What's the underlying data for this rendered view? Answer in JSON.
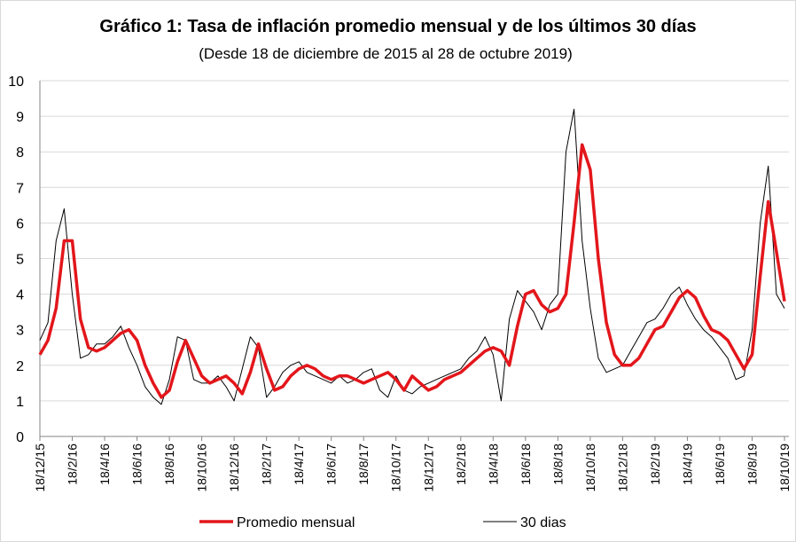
{
  "chart_data": {
    "type": "line",
    "title": "Gráfico 1: Tasa de inflación promedio mensual y de los últimos 30 días",
    "subtitle": "(Desde 18 de diciembre de 2015 al 28 de octubre 2019)",
    "categories": [
      "18/12/15",
      null,
      null,
      null,
      "18/2/16",
      null,
      null,
      null,
      "18/4/16",
      null,
      null,
      null,
      "18/6/16",
      null,
      null,
      null,
      "18/8/16",
      null,
      null,
      null,
      "18/10/16",
      null,
      null,
      null,
      "18/12/16",
      null,
      null,
      null,
      "18/2/17",
      null,
      null,
      null,
      "18/4/17",
      null,
      null,
      null,
      "18/6/17",
      null,
      null,
      null,
      "18/8/17",
      null,
      null,
      null,
      "18/10/17",
      null,
      null,
      null,
      "18/12/17",
      null,
      null,
      null,
      "18/2/18",
      null,
      null,
      null,
      "18/4/18",
      null,
      null,
      null,
      "18/6/18",
      null,
      null,
      null,
      "18/8/18",
      null,
      null,
      null,
      "18/10/18",
      null,
      null,
      null,
      "18/12/18",
      null,
      null,
      null,
      "18/2/19",
      null,
      null,
      null,
      "18/4/19",
      null,
      null,
      null,
      "18/6/19",
      null,
      null,
      null,
      "18/8/19",
      null,
      null,
      null,
      "18/10/19"
    ],
    "series": [
      {
        "name": "Promedio mensual",
        "color": "#e3161b",
        "width": 3.5,
        "values": [
          2.3,
          2.7,
          3.6,
          5.5,
          5.5,
          3.3,
          2.5,
          2.4,
          2.5,
          2.7,
          2.9,
          3.0,
          2.7,
          2.0,
          1.5,
          1.1,
          1.3,
          2.1,
          2.7,
          2.2,
          1.7,
          1.5,
          1.6,
          1.7,
          1.5,
          1.2,
          1.8,
          2.6,
          1.9,
          1.3,
          1.4,
          1.7,
          1.9,
          2.0,
          1.9,
          1.7,
          1.6,
          1.7,
          1.7,
          1.6,
          1.5,
          1.6,
          1.7,
          1.8,
          1.6,
          1.3,
          1.7,
          1.5,
          1.3,
          1.4,
          1.6,
          1.7,
          1.8,
          2.0,
          2.2,
          2.4,
          2.5,
          2.4,
          2.0,
          3.1,
          4.0,
          4.1,
          3.7,
          3.5,
          3.6,
          4.0,
          6.0,
          8.2,
          7.5,
          5.0,
          3.2,
          2.3,
          2.0,
          2.0,
          2.2,
          2.6,
          3.0,
          3.1,
          3.5,
          3.9,
          4.1,
          3.9,
          3.4,
          3.0,
          2.9,
          2.7,
          2.3,
          1.9,
          2.3,
          4.5,
          6.6,
          5.2,
          3.8
        ]
      },
      {
        "name": "30 dias",
        "color": "#000000",
        "width": 1,
        "values": [
          2.7,
          3.2,
          5.5,
          6.4,
          4.0,
          2.2,
          2.3,
          2.6,
          2.6,
          2.8,
          3.1,
          2.5,
          2.0,
          1.4,
          1.1,
          0.9,
          1.6,
          2.8,
          2.7,
          1.6,
          1.5,
          1.5,
          1.7,
          1.4,
          1.0,
          1.9,
          2.8,
          2.5,
          1.1,
          1.4,
          1.8,
          2.0,
          2.1,
          1.8,
          1.7,
          1.6,
          1.5,
          1.7,
          1.5,
          1.6,
          1.8,
          1.9,
          1.3,
          1.1,
          1.7,
          1.3,
          1.2,
          1.4,
          1.5,
          1.6,
          1.7,
          1.8,
          1.9,
          2.2,
          2.4,
          2.8,
          2.3,
          1.0,
          3.3,
          4.1,
          3.8,
          3.5,
          3.0,
          3.7,
          4.0,
          8.0,
          9.2,
          5.5,
          3.6,
          2.2,
          1.8,
          1.9,
          2.0,
          2.4,
          2.8,
          3.2,
          3.3,
          3.6,
          4.0,
          4.2,
          3.7,
          3.3,
          3.0,
          2.8,
          2.5,
          2.2,
          1.6,
          1.7,
          3.0,
          6.0,
          7.6,
          4.0,
          3.6
        ]
      }
    ],
    "ylim": [
      0,
      10
    ],
    "yticks": [
      0,
      1,
      2,
      3,
      4,
      5,
      6,
      7,
      8,
      9,
      10
    ],
    "grid": true,
    "legend": "bottom"
  }
}
